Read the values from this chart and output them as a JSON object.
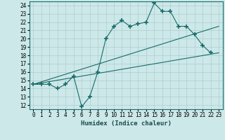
{
  "xlabel": "Humidex (Indice chaleur)",
  "background_color": "#cce8e8",
  "grid_color": "#b0cccc",
  "line_color": "#1a6b6b",
  "xlim": [
    -0.5,
    23.5
  ],
  "ylim": [
    11.5,
    24.5
  ],
  "xticks": [
    0,
    1,
    2,
    3,
    4,
    5,
    6,
    7,
    8,
    9,
    10,
    11,
    12,
    13,
    14,
    15,
    16,
    17,
    18,
    19,
    20,
    21,
    22,
    23
  ],
  "yticks": [
    12,
    13,
    14,
    15,
    16,
    17,
    18,
    19,
    20,
    21,
    22,
    23,
    24
  ],
  "main_x": [
    0,
    1,
    2,
    3,
    4,
    5,
    6,
    7,
    8,
    9,
    10,
    11,
    12,
    13,
    14,
    15,
    16,
    17,
    18,
    19,
    20,
    21,
    22
  ],
  "main_y": [
    14.5,
    14.5,
    14.5,
    14.0,
    14.5,
    15.5,
    11.8,
    13.0,
    16.0,
    20.0,
    21.5,
    22.2,
    21.5,
    21.8,
    22.0,
    24.3,
    23.3,
    23.3,
    21.5,
    21.5,
    20.5,
    19.2,
    18.3
  ],
  "line2_x": [
    0,
    23
  ],
  "line2_y": [
    14.5,
    18.3
  ],
  "line3_x": [
    0,
    23
  ],
  "line3_y": [
    14.5,
    21.5
  ],
  "tick_fontsize": 5.5,
  "xlabel_fontsize": 6.5
}
